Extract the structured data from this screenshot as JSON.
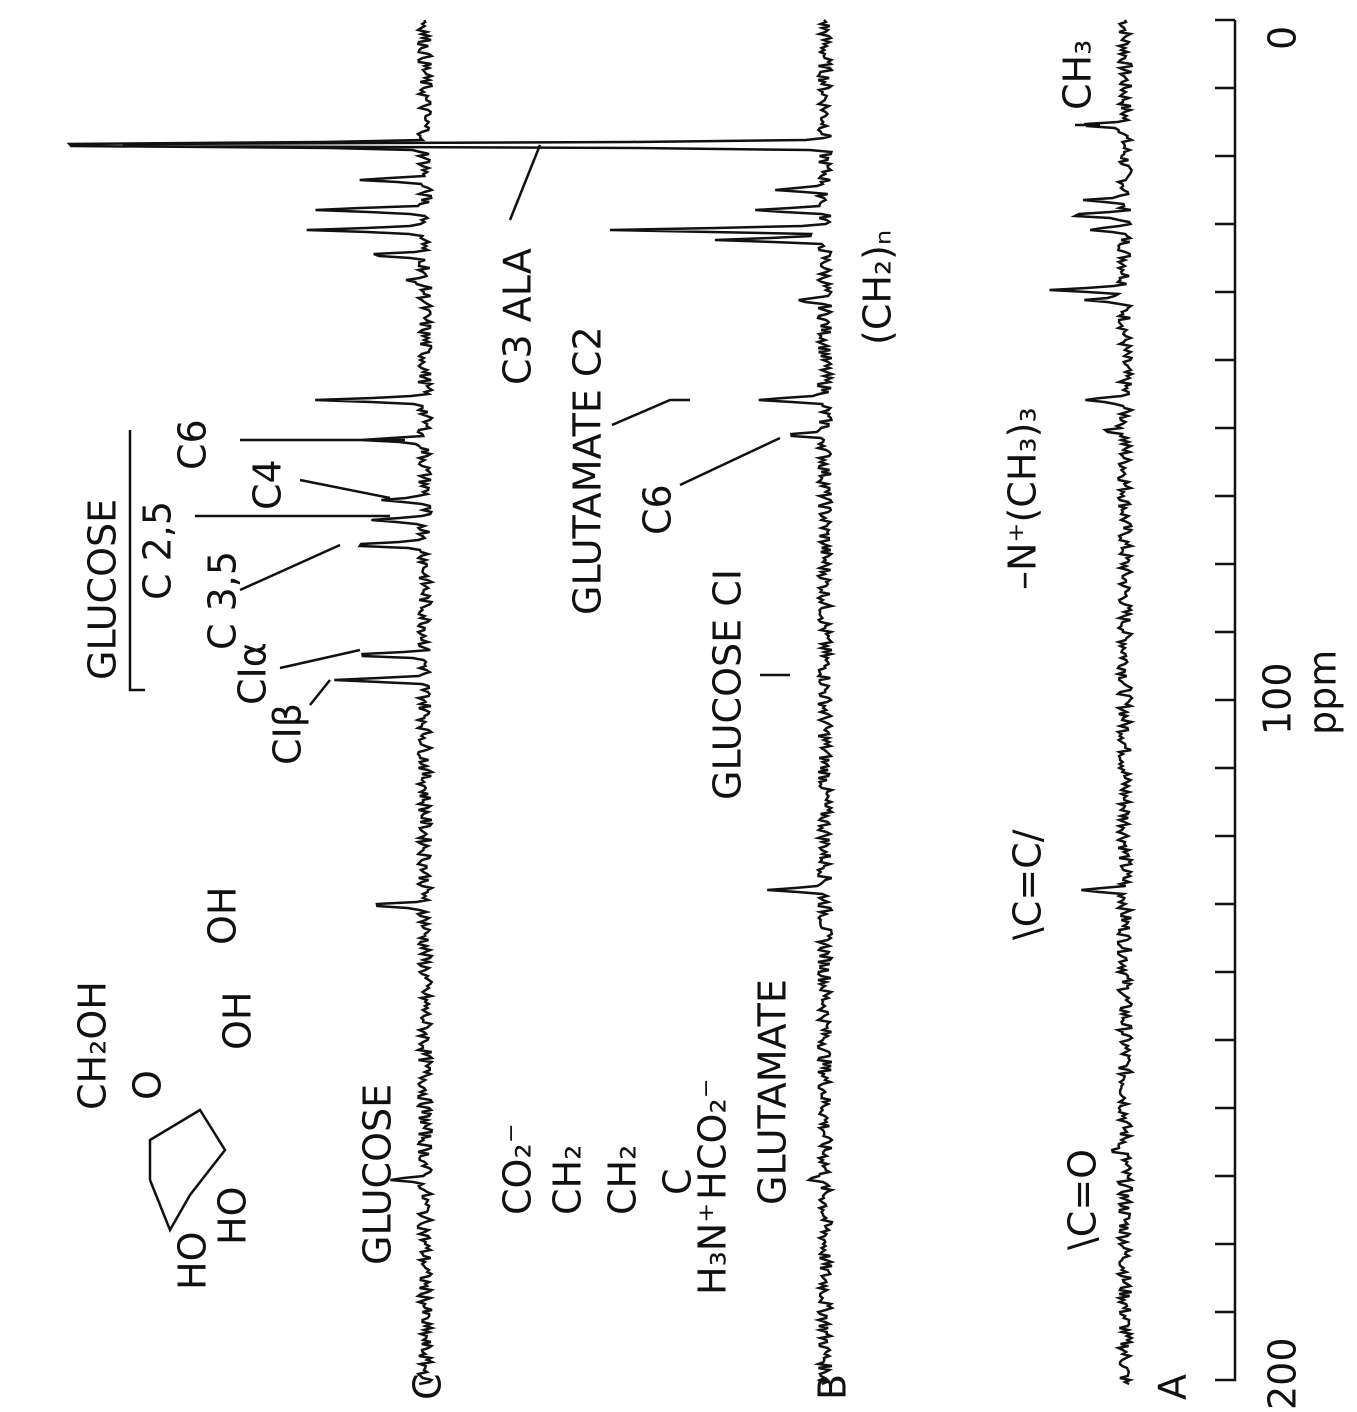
{
  "axis": {
    "label": "ppm",
    "ticks": [
      "0",
      "100",
      "200"
    ]
  },
  "spectra": [
    {
      "label": "A"
    },
    {
      "label": "B"
    },
    {
      "label": "C"
    }
  ],
  "annotations": [
    "GLUCOSE",
    "C6",
    "C 2,5",
    "C4",
    "C 3,5",
    "CIα",
    "CIβ",
    "C3 ALA",
    "GLUCOSE",
    "GLUTAMATE C2",
    "C6",
    "GLUTAMATE",
    "GLUCOSE CI",
    "(CH₂)ₙ",
    "CH₃",
    "–N⁺(CH₃)₃",
    "\\C=C/",
    "\\C=O"
  ],
  "structures": {
    "glucose": [
      "CH₂OH",
      "O",
      "OH",
      "OH",
      "HO",
      "HO"
    ],
    "glutamate": [
      "CO₂⁻",
      "CH₂",
      "CH₂",
      "C",
      "H",
      "CO₂⁻",
      "H₃N⁺"
    ]
  }
}
